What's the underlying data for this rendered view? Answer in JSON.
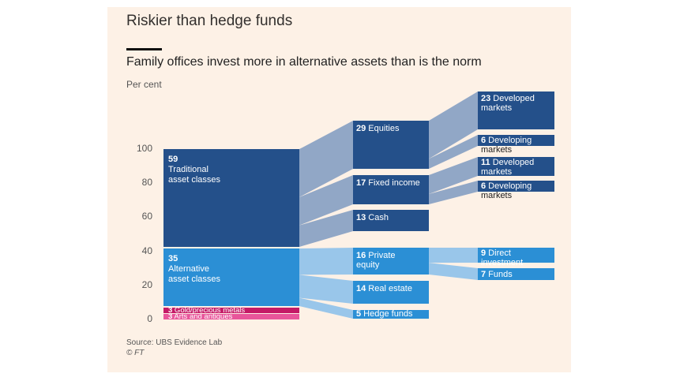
{
  "header": {
    "title": "Riskier than hedge funds",
    "subtitle": "Family offices invest more in alternative assets than is the norm",
    "unit": "Per cent"
  },
  "footer": {
    "source": "Source: UBS Evidence Lab",
    "credit": "© FT"
  },
  "colors": {
    "traditional": "#24508a",
    "alternative": "#2b8fd5",
    "magenta": "#c41a66",
    "pink": "#e8559a",
    "flow_traditional": "#91a7c6",
    "flow_alternative": "#99c6ea",
    "background": "#fdf1e6"
  },
  "chart_data": {
    "type": "sankey",
    "title": "Family offices invest more in alternative assets than is the norm",
    "ylabel": "Per cent",
    "ylim": [
      0,
      100
    ],
    "yticks": [
      "100",
      "80",
      "60",
      "40",
      "20",
      "0"
    ],
    "columns": [
      {
        "name": "level1",
        "nodes": [
          {
            "id": "traditional",
            "value": 59,
            "value_label": "59",
            "label_lines": [
              "Traditional",
              "asset classes"
            ]
          },
          {
            "id": "alternative",
            "value": 35,
            "value_label": "35",
            "label_lines": [
              "Alternative",
              "asset classes"
            ]
          },
          {
            "id": "gold",
            "value": 3,
            "value_label": "3",
            "label_lines": [
              "Gold/precious metals"
            ]
          },
          {
            "id": "arts",
            "value": 3,
            "value_label": "3",
            "label_lines": [
              "Arts and antiques"
            ]
          }
        ]
      },
      {
        "name": "level2",
        "nodes": [
          {
            "id": "equities",
            "parent": "traditional",
            "value": 29,
            "value_label": "29",
            "label_lines": [
              "Equities"
            ]
          },
          {
            "id": "fixed",
            "parent": "traditional",
            "value": 17,
            "value_label": "17",
            "label_lines": [
              "Fixed income"
            ]
          },
          {
            "id": "cash",
            "parent": "traditional",
            "value": 13,
            "value_label": "13",
            "label_lines": [
              "Cash"
            ]
          },
          {
            "id": "pe",
            "parent": "alternative",
            "value": 16,
            "value_label": "16",
            "label_lines": [
              "Private",
              "equity"
            ]
          },
          {
            "id": "re",
            "parent": "alternative",
            "value": 14,
            "value_label": "14",
            "label_lines": [
              "Real estate"
            ]
          },
          {
            "id": "hf",
            "parent": "alternative",
            "value": 5,
            "value_label": "5",
            "label_lines": [
              "Hedge funds"
            ]
          }
        ]
      },
      {
        "name": "level3",
        "nodes": [
          {
            "id": "eq_dev",
            "parent": "equities",
            "value": 23,
            "value_label": "23",
            "label_lines": [
              "Developed",
              "markets"
            ]
          },
          {
            "id": "eq_dvg",
            "parent": "equities",
            "value": 6,
            "value_label": "6",
            "label_lines": [
              "Developing",
              "markets"
            ]
          },
          {
            "id": "fi_dev",
            "parent": "fixed",
            "value": 11,
            "value_label": "11",
            "label_lines": [
              "Developed",
              "markets"
            ]
          },
          {
            "id": "fi_dvg",
            "parent": "fixed",
            "value": 6,
            "value_label": "6",
            "label_lines": [
              "Developing",
              "markets"
            ]
          },
          {
            "id": "pe_direct",
            "parent": "pe",
            "value": 9,
            "value_label": "9",
            "label_lines": [
              "Direct",
              "investment"
            ]
          },
          {
            "id": "pe_funds",
            "parent": "pe",
            "value": 7,
            "value_label": "7",
            "label_lines": [
              "Funds"
            ]
          }
        ]
      }
    ]
  }
}
